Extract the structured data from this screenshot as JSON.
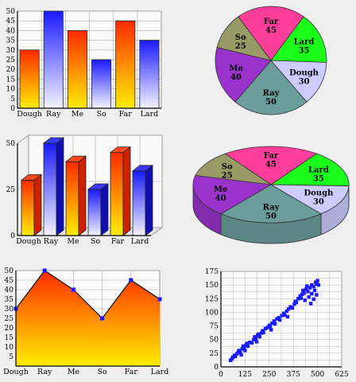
{
  "colors": {
    "background": "#efefef",
    "bar_red_top": "#ff2a00",
    "bar_red_bottom": "#ffee00",
    "bar_blue_top": "#1a1aff",
    "bar_blue_bottom": "#f4f4ff",
    "pie_far": "#ff3d9a",
    "pie_lard": "#1aff1a",
    "pie_dough": "#ccccff",
    "pie_ray": "#6b9e9a",
    "pie_me": "#9a33cc",
    "pie_so": "#9a9a66",
    "scatter_point": "#1a1aff"
  },
  "chart_data": [
    {
      "type": "bar",
      "style": "2d-gradient",
      "categories": [
        "Dough",
        "Ray",
        "Me",
        "So",
        "Far",
        "Lard"
      ],
      "values": [
        30,
        50,
        40,
        25,
        45,
        35
      ],
      "colors": [
        "red-gradient",
        "blue-gradient",
        "red-gradient",
        "blue-gradient",
        "red-gradient",
        "blue-gradient"
      ],
      "ylim": [
        0,
        50
      ],
      "yticks": [
        "0",
        "5",
        "10",
        "15",
        "20",
        "25",
        "30",
        "35",
        "40",
        "45",
        "50"
      ],
      "grid": true
    },
    {
      "type": "pie",
      "style": "2d",
      "slices": [
        {
          "label": "Far",
          "value": 45,
          "color": "#ff3d9a"
        },
        {
          "label": "Lard",
          "value": 35,
          "color": "#1aff1a"
        },
        {
          "label": "Dough",
          "value": 30,
          "color": "#ccccff"
        },
        {
          "label": "Ray",
          "value": 50,
          "color": "#6b9e9a"
        },
        {
          "label": "Me",
          "value": 40,
          "color": "#9a33cc"
        },
        {
          "label": "So",
          "value": 25,
          "color": "#9a9a66"
        }
      ]
    },
    {
      "type": "bar",
      "style": "3d-gradient",
      "categories": [
        "Dough",
        "Ray",
        "Me",
        "So",
        "Far",
        "Lard"
      ],
      "values": [
        30,
        50,
        40,
        25,
        45,
        35
      ],
      "colors": [
        "red-gradient",
        "blue-gradient",
        "red-gradient",
        "blue-gradient",
        "red-gradient",
        "blue-gradient"
      ],
      "ylim": [
        0,
        50
      ],
      "yticks": [
        "0",
        "25",
        "50"
      ],
      "grid": true
    },
    {
      "type": "pie",
      "style": "3d",
      "slices": [
        {
          "label": "Far",
          "value": 45,
          "color": "#ff3d9a"
        },
        {
          "label": "Lard",
          "value": 35,
          "color": "#1aff1a"
        },
        {
          "label": "Dough",
          "value": 30,
          "color": "#ccccff"
        },
        {
          "label": "Ray",
          "value": 50,
          "color": "#6b9e9a"
        },
        {
          "label": "Me",
          "value": 40,
          "color": "#9a33cc"
        },
        {
          "label": "So",
          "value": 25,
          "color": "#9a9a66"
        }
      ]
    },
    {
      "type": "area",
      "categories": [
        "Dough",
        "Ray",
        "Me",
        "So",
        "Far",
        "Lard"
      ],
      "values": [
        30,
        50,
        40,
        25,
        45,
        35
      ],
      "ylim": [
        0,
        50
      ],
      "yticks": [
        "5",
        "10",
        "15",
        "20",
        "25",
        "30",
        "35",
        "40",
        "45",
        "50"
      ],
      "grid": true
    },
    {
      "type": "scatter",
      "xlim": [
        0,
        625
      ],
      "ylim": [
        0,
        175
      ],
      "xticks": [
        "0",
        "125",
        "250",
        "375",
        "500",
        "625"
      ],
      "yticks": [
        "0",
        "25",
        "50",
        "75",
        "100",
        "125",
        "150",
        "175"
      ],
      "grid": true,
      "points": [
        [
          50,
          12
        ],
        [
          58,
          15
        ],
        [
          62,
          18
        ],
        [
          70,
          21
        ],
        [
          75,
          19
        ],
        [
          82,
          24
        ],
        [
          90,
          28
        ],
        [
          95,
          30
        ],
        [
          100,
          26
        ],
        [
          110,
          33
        ],
        [
          115,
          38
        ],
        [
          120,
          35
        ],
        [
          130,
          40
        ],
        [
          135,
          43
        ],
        [
          140,
          38
        ],
        [
          150,
          45
        ],
        [
          160,
          44
        ],
        [
          170,
          50
        ],
        [
          175,
          55
        ],
        [
          180,
          52
        ],
        [
          190,
          58
        ],
        [
          195,
          60
        ],
        [
          200,
          55
        ],
        [
          210,
          62
        ],
        [
          215,
          66
        ],
        [
          220,
          63
        ],
        [
          230,
          70
        ],
        [
          240,
          72
        ],
        [
          250,
          76
        ],
        [
          255,
          74
        ],
        [
          265,
          80
        ],
        [
          275,
          84
        ],
        [
          280,
          79
        ],
        [
          290,
          88
        ],
        [
          300,
          90
        ],
        [
          305,
          86
        ],
        [
          315,
          94
        ],
        [
          325,
          98
        ],
        [
          330,
          95
        ],
        [
          340,
          102
        ],
        [
          350,
          106
        ],
        [
          360,
          110
        ],
        [
          370,
          108
        ],
        [
          380,
          115
        ],
        [
          385,
          120
        ],
        [
          390,
          118
        ],
        [
          400,
          125
        ],
        [
          410,
          130
        ],
        [
          415,
          126
        ],
        [
          420,
          133
        ],
        [
          425,
          140
        ],
        [
          430,
          135
        ],
        [
          440,
          142
        ],
        [
          445,
          148
        ],
        [
          450,
          138
        ],
        [
          460,
          145
        ],
        [
          470,
          150
        ],
        [
          480,
          147
        ],
        [
          490,
          155
        ],
        [
          495,
          152
        ],
        [
          500,
          158
        ],
        [
          505,
          150
        ],
        [
          455,
          128
        ],
        [
          470,
          134
        ],
        [
          485,
          140
        ],
        [
          435,
          122
        ],
        [
          465,
          116
        ],
        [
          480,
          124
        ],
        [
          495,
          132
        ],
        [
          345,
          92
        ],
        [
          260,
          68
        ],
        [
          185,
          46
        ],
        [
          125,
          30
        ],
        [
          105,
          22
        ]
      ]
    }
  ]
}
